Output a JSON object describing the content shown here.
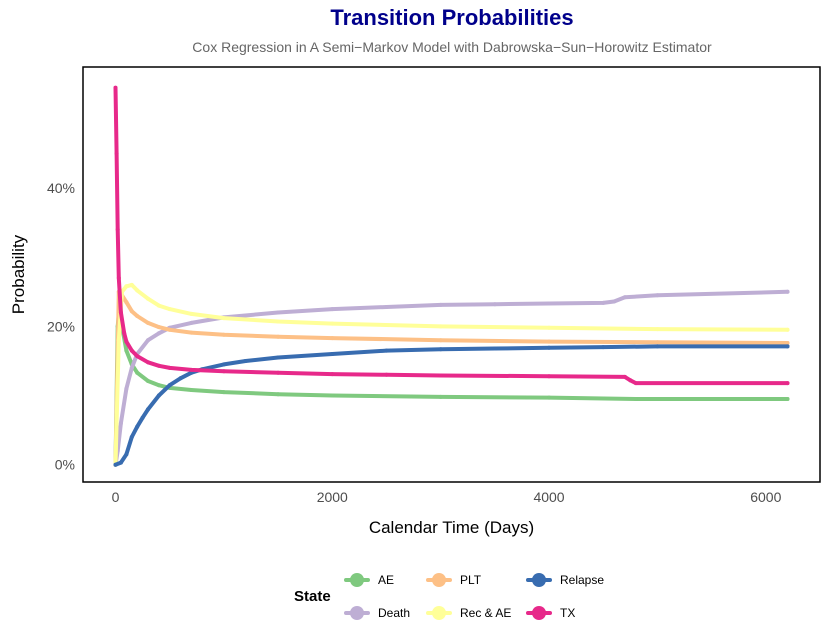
{
  "chart_data": {
    "type": "line",
    "title": "Transition Probabilities",
    "subtitle": "Cox Regression in A Semi−Markov Model with Dabrowska−Sun−Horowitz Estimator",
    "xlabel": "Calendar Time (Days)",
    "ylabel": "Probability",
    "xlim": [
      -300,
      6500
    ],
    "ylim": [
      -0.025,
      0.575
    ],
    "x_ticks": [
      0,
      2000,
      4000,
      6000
    ],
    "x_tick_labels": [
      "0",
      "2000",
      "4000",
      "6000"
    ],
    "y_ticks": [
      0,
      0.2,
      0.4
    ],
    "y_tick_labels": [
      "0%",
      "20%",
      "40%"
    ],
    "grid": false,
    "legend": {
      "title": "State",
      "position": "bottom",
      "order": [
        "AE",
        "Death",
        "PLT",
        "Rec & AE",
        "Relapse",
        "TX"
      ]
    },
    "series": [
      {
        "name": "AE",
        "color": "#7FC97F",
        "x": [
          0,
          20,
          40,
          60,
          100,
          150,
          200,
          300,
          400,
          500,
          700,
          1000,
          1500,
          2000,
          3000,
          4000,
          4800,
          6200
        ],
        "y": [
          0.0,
          0.2,
          0.235,
          0.2,
          0.165,
          0.145,
          0.133,
          0.121,
          0.115,
          0.111,
          0.108,
          0.105,
          0.102,
          0.1,
          0.098,
          0.097,
          0.095,
          0.095
        ]
      },
      {
        "name": "Death",
        "color": "#BEAED4",
        "x": [
          0,
          20,
          50,
          100,
          150,
          200,
          300,
          400,
          500,
          700,
          1000,
          1500,
          2000,
          2500,
          3000,
          3500,
          4000,
          4500,
          4600,
          4700,
          5000,
          6200
        ],
        "y": [
          0.0,
          0.02,
          0.06,
          0.11,
          0.14,
          0.16,
          0.18,
          0.19,
          0.198,
          0.205,
          0.213,
          0.22,
          0.225,
          0.228,
          0.231,
          0.232,
          0.233,
          0.234,
          0.236,
          0.242,
          0.245,
          0.25
        ]
      },
      {
        "name": "PLT",
        "color": "#FDC086",
        "x": [
          0,
          30,
          60,
          100,
          150,
          200,
          300,
          400,
          500,
          700,
          1000,
          1500,
          2000,
          3000,
          4000,
          5000,
          6200
        ],
        "y": [
          0.0,
          0.25,
          0.245,
          0.235,
          0.222,
          0.215,
          0.205,
          0.199,
          0.195,
          0.191,
          0.188,
          0.185,
          0.183,
          0.18,
          0.178,
          0.177,
          0.176
        ]
      },
      {
        "name": "Rec & AE",
        "color": "#FFFF99",
        "x": [
          0,
          30,
          60,
          100,
          150,
          200,
          300,
          400,
          500,
          700,
          1000,
          1500,
          2000,
          3000,
          4000,
          5000,
          6200
        ],
        "y": [
          0.0,
          0.18,
          0.25,
          0.258,
          0.26,
          0.252,
          0.24,
          0.23,
          0.225,
          0.218,
          0.212,
          0.207,
          0.204,
          0.2,
          0.198,
          0.196,
          0.195
        ]
      },
      {
        "name": "Relapse",
        "color": "#386CB0",
        "x": [
          0,
          50,
          100,
          150,
          200,
          250,
          300,
          400,
          500,
          600,
          700,
          800,
          1000,
          1200,
          1500,
          2000,
          2500,
          3000,
          3500,
          4000,
          4500,
          5000,
          6200
        ],
        "y": [
          0.0,
          0.003,
          0.015,
          0.04,
          0.055,
          0.068,
          0.08,
          0.1,
          0.115,
          0.125,
          0.133,
          0.138,
          0.145,
          0.15,
          0.155,
          0.16,
          0.165,
          0.167,
          0.168,
          0.169,
          0.17,
          0.171,
          0.171
        ]
      },
      {
        "name": "TX",
        "color": "#E7298A",
        "x": [
          0,
          10,
          20,
          30,
          50,
          80,
          100,
          150,
          200,
          300,
          400,
          500,
          700,
          1000,
          1500,
          2000,
          2500,
          3000,
          4000,
          4700,
          4750,
          4800,
          6200
        ],
        "y": [
          0.545,
          0.45,
          0.34,
          0.27,
          0.22,
          0.19,
          0.178,
          0.165,
          0.157,
          0.148,
          0.143,
          0.14,
          0.137,
          0.135,
          0.133,
          0.131,
          0.13,
          0.129,
          0.128,
          0.127,
          0.122,
          0.118,
          0.118
        ]
      }
    ]
  }
}
